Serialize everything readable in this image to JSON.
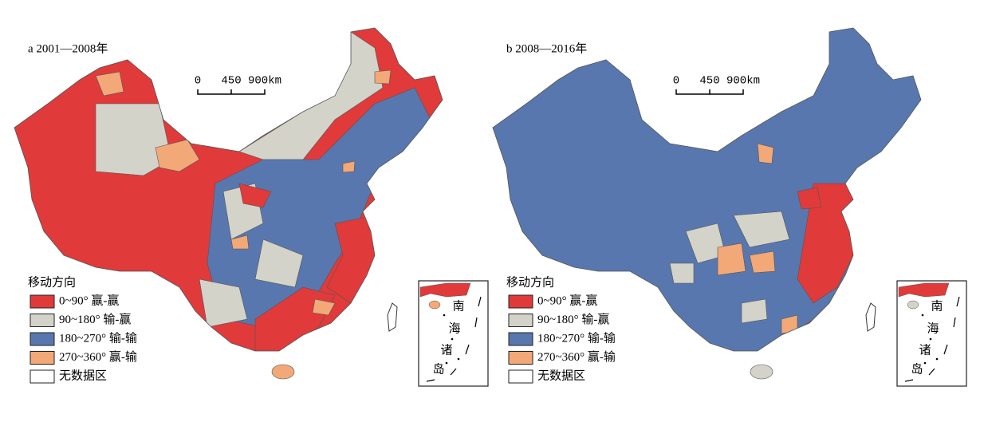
{
  "panels": [
    {
      "title": "a 2001—2008年",
      "scale": {
        "labels": [
          "0",
          "450",
          "900km"
        ]
      },
      "legend": {
        "title": "移动方向",
        "items": [
          {
            "color": "#e03a3a",
            "label": "0~90°  赢-赢"
          },
          {
            "color": "#d3d3ca",
            "label": "90~180°  输-赢"
          },
          {
            "color": "#5877ae",
            "label": "180~270°  输-输"
          },
          {
            "color": "#f2a877",
            "label": "270~360°  赢-输"
          },
          {
            "color": "#ffffff",
            "label": "无数据区"
          }
        ]
      },
      "inset": {
        "label": [
          "南",
          "海",
          "诸",
          "岛"
        ]
      }
    },
    {
      "title": "b 2008—2016年",
      "scale": {
        "labels": [
          "0",
          "450",
          "900km"
        ]
      },
      "legend": {
        "title": "移动方向",
        "items": [
          {
            "color": "#e03a3a",
            "label": "0~90°  赢-赢"
          },
          {
            "color": "#d3d3ca",
            "label": "90~180°  输-赢"
          },
          {
            "color": "#5877ae",
            "label": "180~270°  输-输"
          },
          {
            "color": "#f2a877",
            "label": "270~360°  赢-输"
          },
          {
            "color": "#ffffff",
            "label": "无数据区"
          }
        ]
      },
      "inset": {
        "label": [
          "南",
          "海",
          "诸",
          "岛"
        ]
      }
    }
  ]
}
